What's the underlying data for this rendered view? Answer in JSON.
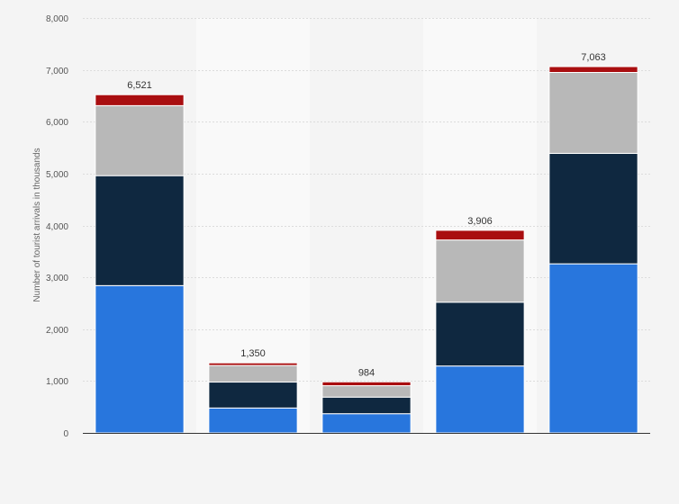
{
  "chart_data": {
    "type": "bar",
    "stacked": true,
    "ylabel": "Number of tourist arrivals in thousands",
    "ylim": [
      0,
      8000
    ],
    "yticks": [
      0,
      1000,
      2000,
      3000,
      4000,
      5000,
      6000,
      7000,
      8000
    ],
    "ytick_labels": [
      "0",
      "1,000",
      "2,000",
      "3,000",
      "4,000",
      "5,000",
      "6,000",
      "7,000",
      "8,000"
    ],
    "categories": [
      "",
      "",
      "",
      "",
      ""
    ],
    "series": [
      {
        "values": [
          2840,
          480,
          370,
          1290,
          3260
        ],
        "color": "#2876dd"
      },
      {
        "values": [
          2120,
          500,
          320,
          1230,
          2130
        ],
        "color": "#0f2840"
      },
      {
        "values": [
          1350,
          320,
          220,
          1200,
          1560
        ],
        "color": "#b8b8b8"
      },
      {
        "values": [
          211,
          50,
          74,
          186,
          113
        ],
        "color": "#a90e10"
      }
    ],
    "total_labels": [
      "6,521",
      "1,350",
      "984",
      "3,906",
      "7,063"
    ],
    "grid": true,
    "legend": "none"
  }
}
